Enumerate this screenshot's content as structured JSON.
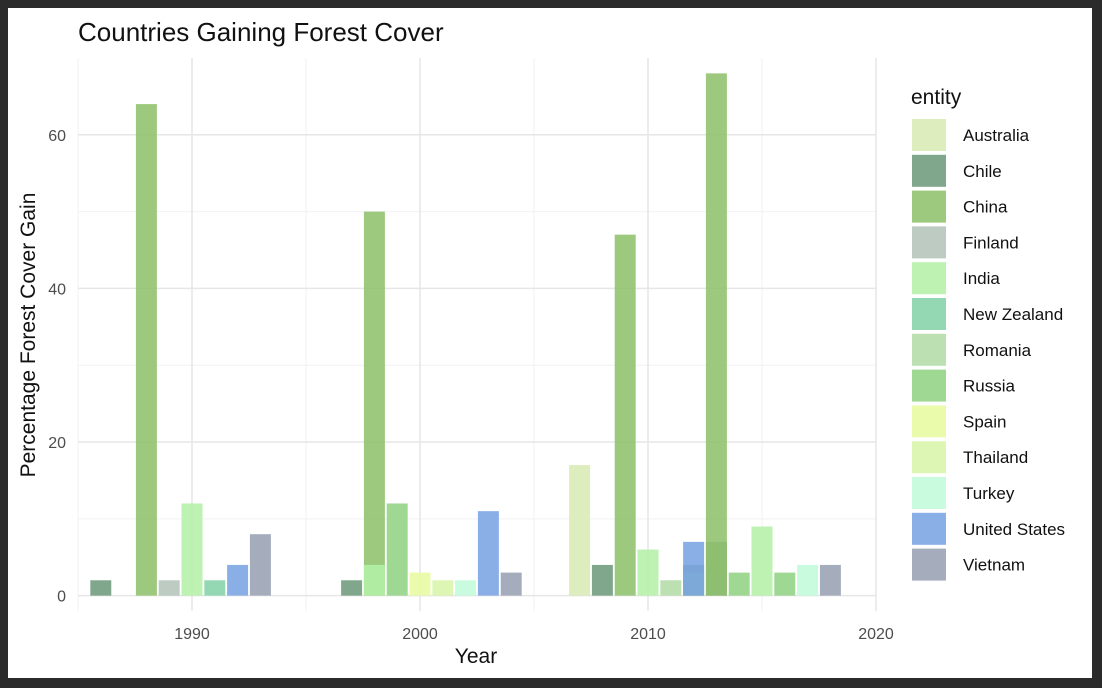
{
  "chart_data": {
    "type": "bar",
    "title": "Countries Gaining Forest Cover",
    "xlabel": "Year",
    "ylabel": "Percentage Forest Cover Gain",
    "xlim": [
      1985,
      2020
    ],
    "ylim": [
      -2,
      70
    ],
    "x_ticks": [
      1990,
      2000,
      2010,
      2020
    ],
    "y_ticks": [
      0,
      20,
      40,
      60
    ],
    "grid": true,
    "legend_title": "entity",
    "legend_position": "right",
    "series": [
      {
        "name": "Australia",
        "color": "#d9ebb5",
        "points": [
          {
            "x": 2007,
            "y": 17
          }
        ]
      },
      {
        "name": "Chile",
        "color": "#6e9a7c",
        "points": [
          {
            "x": 1986,
            "y": 2
          },
          {
            "x": 1997,
            "y": 2
          },
          {
            "x": 2008,
            "y": 4
          },
          {
            "x": 2012,
            "y": 4
          },
          {
            "x": 2013,
            "y": 7
          }
        ]
      },
      {
        "name": "China",
        "color": "#8fc26c",
        "points": [
          {
            "x": 1988,
            "y": 64
          },
          {
            "x": 1998,
            "y": 50
          },
          {
            "x": 2009,
            "y": 47
          },
          {
            "x": 2013,
            "y": 68
          }
        ]
      },
      {
        "name": "Finland",
        "color": "#b4c4bb",
        "points": [
          {
            "x": 1989,
            "y": 2
          }
        ]
      },
      {
        "name": "India",
        "color": "#b4f0a8",
        "points": [
          {
            "x": 1990,
            "y": 12
          },
          {
            "x": 1998,
            "y": 4
          },
          {
            "x": 2010,
            "y": 6
          },
          {
            "x": 2015,
            "y": 9
          }
        ]
      },
      {
        "name": "New Zealand",
        "color": "#84d3a8",
        "points": [
          {
            "x": 1991,
            "y": 2
          }
        ]
      },
      {
        "name": "Romania",
        "color": "#b4dca8",
        "points": [
          {
            "x": 2011,
            "y": 2
          }
        ]
      },
      {
        "name": "Russia",
        "color": "#92d384",
        "points": [
          {
            "x": 1999,
            "y": 12
          },
          {
            "x": 2012,
            "y": 3
          },
          {
            "x": 2014,
            "y": 3
          },
          {
            "x": 2016,
            "y": 3
          }
        ]
      },
      {
        "name": "Spain",
        "color": "#e7fc9f",
        "points": [
          {
            "x": 2000,
            "y": 3
          }
        ]
      },
      {
        "name": "Thailand",
        "color": "#daf5a8",
        "points": [
          {
            "x": 2001,
            "y": 2
          }
        ]
      },
      {
        "name": "Turkey",
        "color": "#c2fbdb",
        "points": [
          {
            "x": 2002,
            "y": 2
          },
          {
            "x": 2017,
            "y": 4
          }
        ]
      },
      {
        "name": "United States",
        "color": "#7aa4e4",
        "points": [
          {
            "x": 1992,
            "y": 4
          },
          {
            "x": 2003,
            "y": 11
          },
          {
            "x": 2012,
            "y": 7
          }
        ]
      },
      {
        "name": "Vietnam",
        "color": "#98a2b4",
        "points": [
          {
            "x": 1993,
            "y": 8
          },
          {
            "x": 2004,
            "y": 3
          },
          {
            "x": 2018,
            "y": 4
          }
        ]
      }
    ]
  }
}
